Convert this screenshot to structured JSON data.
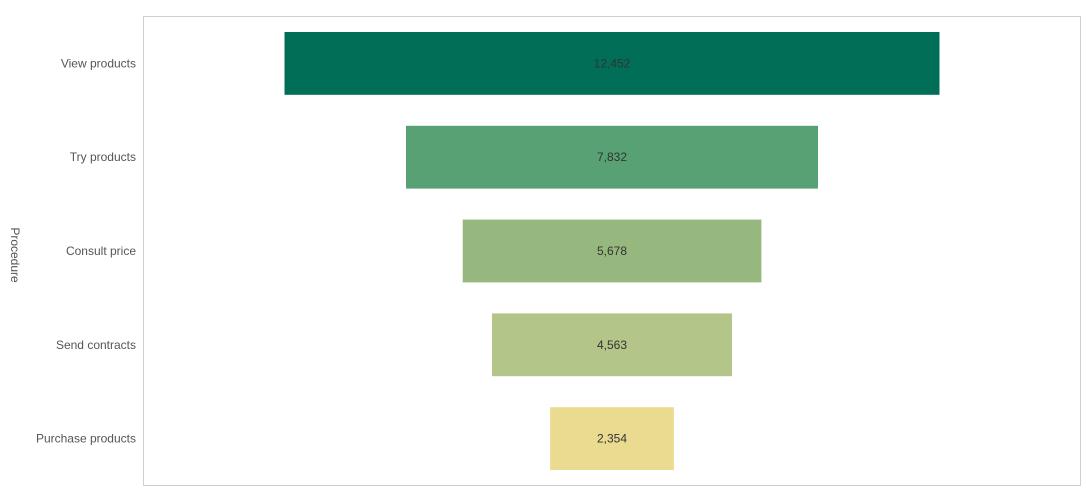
{
  "chart_data": {
    "type": "bar",
    "subtype": "funnel",
    "title": "",
    "xlabel": "",
    "ylabel": "Procedure",
    "categories": [
      "View products",
      "Try products",
      "Consult price",
      "Send contracts",
      "Purchase products"
    ],
    "values": [
      12452,
      7832,
      5678,
      4563,
      2354
    ],
    "value_labels": [
      "12,452",
      "7,832",
      "5,678",
      "4,563",
      "2,354"
    ],
    "colors": [
      "#016e58",
      "#58a174",
      "#96b87f",
      "#b3c588",
      "#ebdb91"
    ],
    "legend": "none",
    "grid": false,
    "bar_alignment": "center"
  }
}
